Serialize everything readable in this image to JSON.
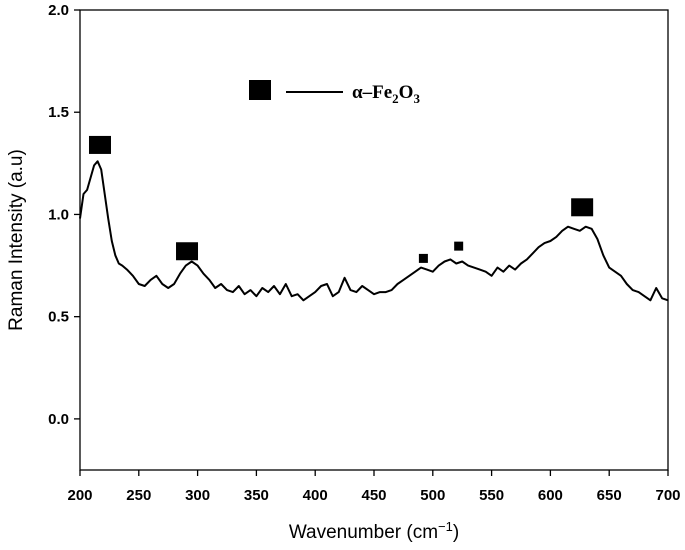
{
  "chart_data": {
    "type": "line",
    "title": "",
    "xlabel": "Wavenumber (cm",
    "xlabel_sup": "−1",
    "xlabel_tail": ")",
    "ylabel": "Raman Intensity (a.u)",
    "xlim": [
      200,
      700
    ],
    "ylim": [
      -0.25,
      2.0
    ],
    "x_ticks": [
      200,
      250,
      300,
      350,
      400,
      450,
      500,
      550,
      600,
      650,
      700
    ],
    "y_ticks": [
      0.0,
      0.5,
      1.0,
      1.5,
      2.0
    ],
    "y_tick_labels": [
      "0.0",
      "0.5",
      "1.0",
      "1.5",
      "2.0"
    ],
    "grid": false,
    "legend": {
      "placement": "top-center",
      "marker": "square",
      "text_prefix": "α–Fe",
      "sub1": "2",
      "text_mid": "O",
      "sub2": "3"
    },
    "series": [
      {
        "name": "α–Fe2O3",
        "color": "#000000",
        "x": [
          200,
          203,
          206,
          209,
          212,
          215,
          218,
          221,
          224,
          227,
          230,
          233,
          236,
          240,
          245,
          250,
          255,
          260,
          265,
          270,
          275,
          280,
          285,
          290,
          295,
          300,
          305,
          310,
          315,
          320,
          325,
          330,
          335,
          340,
          345,
          350,
          355,
          360,
          365,
          370,
          375,
          380,
          385,
          390,
          395,
          400,
          405,
          410,
          415,
          420,
          425,
          430,
          435,
          440,
          445,
          450,
          455,
          460,
          465,
          470,
          475,
          480,
          485,
          490,
          495,
          500,
          505,
          510,
          515,
          520,
          525,
          530,
          535,
          540,
          545,
          550,
          555,
          560,
          565,
          570,
          575,
          580,
          585,
          590,
          595,
          600,
          605,
          610,
          615,
          620,
          625,
          630,
          635,
          640,
          645,
          650,
          655,
          660,
          665,
          670,
          675,
          680,
          685,
          690,
          695,
          700
        ],
        "y": [
          0.98,
          1.1,
          1.12,
          1.18,
          1.24,
          1.26,
          1.22,
          1.1,
          0.98,
          0.87,
          0.8,
          0.76,
          0.75,
          0.73,
          0.7,
          0.66,
          0.65,
          0.68,
          0.7,
          0.66,
          0.64,
          0.66,
          0.71,
          0.75,
          0.77,
          0.75,
          0.71,
          0.68,
          0.64,
          0.66,
          0.63,
          0.62,
          0.65,
          0.61,
          0.63,
          0.6,
          0.64,
          0.62,
          0.65,
          0.61,
          0.66,
          0.6,
          0.61,
          0.58,
          0.6,
          0.62,
          0.65,
          0.66,
          0.6,
          0.62,
          0.69,
          0.63,
          0.62,
          0.65,
          0.63,
          0.61,
          0.62,
          0.62,
          0.63,
          0.66,
          0.68,
          0.7,
          0.72,
          0.74,
          0.73,
          0.72,
          0.75,
          0.77,
          0.78,
          0.76,
          0.77,
          0.75,
          0.74,
          0.73,
          0.72,
          0.7,
          0.74,
          0.72,
          0.75,
          0.73,
          0.76,
          0.78,
          0.81,
          0.84,
          0.86,
          0.87,
          0.89,
          0.92,
          0.94,
          0.93,
          0.92,
          0.94,
          0.93,
          0.88,
          0.8,
          0.74,
          0.72,
          0.7,
          0.66,
          0.63,
          0.62,
          0.6,
          0.58,
          0.64,
          0.59,
          0.58
        ]
      }
    ],
    "peak_markers": [
      {
        "x": 217,
        "y": 1.34,
        "size": "large"
      },
      {
        "x": 291,
        "y": 0.82,
        "size": "large"
      },
      {
        "x": 492,
        "y": 0.785,
        "size": "small"
      },
      {
        "x": 522,
        "y": 0.845,
        "size": "small"
      },
      {
        "x": 627,
        "y": 1.035,
        "size": "large"
      }
    ]
  }
}
